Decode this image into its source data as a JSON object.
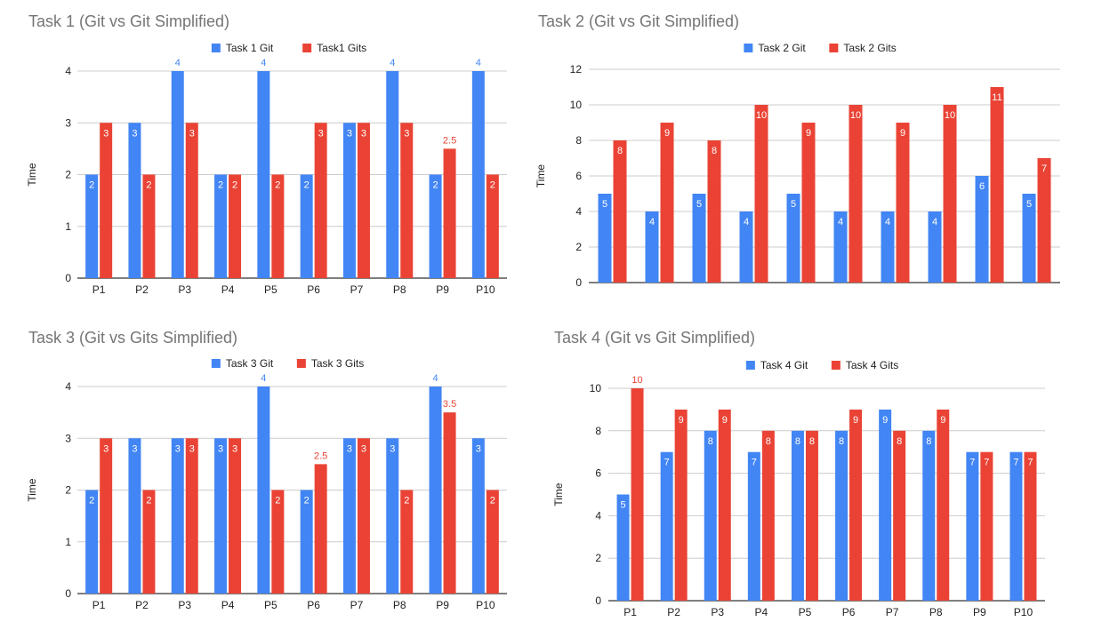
{
  "colors": {
    "git": "#4285f4",
    "gits": "#ea4335",
    "grid": "#cccccc",
    "axis": "#333333",
    "title": "#757575",
    "text": "#222222"
  },
  "chart_data": [
    {
      "type": "bar",
      "title": "Task 1 (Git vs Git Simplified)",
      "categories": [
        "P1",
        "P2",
        "P3",
        "P4",
        "P5",
        "P6",
        "P7",
        "P8",
        "P9",
        "P10"
      ],
      "series": [
        {
          "name": "Task  1 Git",
          "values": [
            2,
            3,
            4,
            2,
            4,
            2,
            3,
            4,
            2,
            4
          ]
        },
        {
          "name": "Task1 Gits",
          "values": [
            3,
            2,
            3,
            2,
            2,
            3,
            3,
            3,
            2.5,
            2
          ]
        }
      ],
      "xlabel": "",
      "ylabel": "Time",
      "ylim": [
        0,
        4
      ],
      "yticks": [
        0,
        1,
        2,
        3,
        4
      ],
      "show_x_labels": true,
      "grid": true,
      "legend": "top"
    },
    {
      "type": "bar",
      "title": "Task 2 (Git vs Git Simplified)",
      "categories": [
        "",
        "",
        "",
        "",
        "",
        "",
        "",
        "",
        "",
        ""
      ],
      "series": [
        {
          "name": "Task 2 Git",
          "values": [
            5,
            4,
            5,
            4,
            5,
            4,
            4,
            4,
            6,
            5
          ]
        },
        {
          "name": "Task 2 Gits",
          "values": [
            8,
            9,
            8,
            10,
            9,
            10,
            9,
            10,
            11,
            7
          ]
        }
      ],
      "xlabel": "",
      "ylabel": "Time",
      "ylim": [
        0,
        12
      ],
      "yticks": [
        0,
        2,
        4,
        6,
        8,
        10,
        12
      ],
      "show_x_labels": false,
      "grid": true,
      "legend": "top"
    },
    {
      "type": "bar",
      "title": "Task 3 (Git vs Gits Simplified)",
      "categories": [
        "P1",
        "P2",
        "P3",
        "P4",
        "P5",
        "P6",
        "P7",
        "P8",
        "P9",
        "P10"
      ],
      "series": [
        {
          "name": "Task 3 Git",
          "values": [
            2,
            3,
            3,
            3,
            4,
            2,
            3,
            3,
            4,
            3
          ]
        },
        {
          "name": "Task 3 Gits",
          "values": [
            3,
            2,
            3,
            3,
            2,
            2.5,
            3,
            2,
            3.5,
            2
          ]
        }
      ],
      "xlabel": "",
      "ylabel": "Time",
      "ylim": [
        0,
        4
      ],
      "yticks": [
        0,
        1,
        2,
        3,
        4
      ],
      "show_x_labels": true,
      "grid": true,
      "legend": "top"
    },
    {
      "type": "bar",
      "title": "Task 4 (Git vs Git Simplified)",
      "categories": [
        "P1",
        "P2",
        "P3",
        "P4",
        "P5",
        "P6",
        "P7",
        "P8",
        "P9",
        "P10"
      ],
      "series": [
        {
          "name": "Task 4 Git",
          "values": [
            5,
            7,
            8,
            7,
            8,
            8,
            9,
            8,
            7,
            7
          ]
        },
        {
          "name": "Task 4 Gits",
          "values": [
            10,
            9,
            9,
            8,
            8,
            9,
            8,
            9,
            7,
            7
          ]
        }
      ],
      "xlabel": "",
      "ylabel": "Time",
      "ylim": [
        0,
        10
      ],
      "yticks": [
        0,
        2,
        4,
        6,
        8,
        10
      ],
      "show_x_labels": true,
      "grid": true,
      "legend": "top"
    }
  ]
}
